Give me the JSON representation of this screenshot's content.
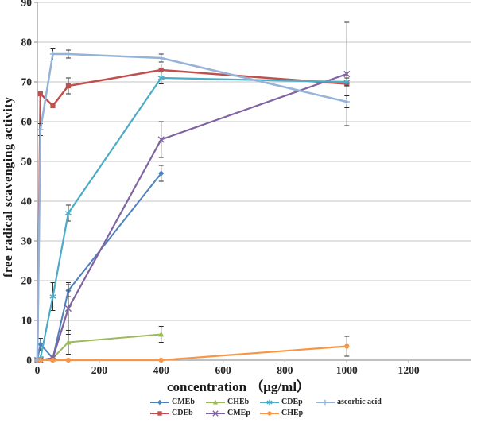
{
  "figure": {
    "background": "#ffffff"
  },
  "chart_data": {
    "type": "line",
    "title": "",
    "xlabel": "concentration （μg/ml）",
    "ylabel": "free radical scavenging activity",
    "xlim": [
      0,
      1400
    ],
    "ylim": [
      0,
      90
    ],
    "x_ticks": [
      0,
      200,
      400,
      600,
      800,
      1000,
      1200
    ],
    "y_ticks": [
      0,
      10,
      20,
      30,
      40,
      50,
      60,
      70,
      80,
      90
    ],
    "grid": "horizontal",
    "gridline_color": "#c6c6c6",
    "axis_color": "#9b9b9b",
    "error_bar_color": "#2b2b2b",
    "legend_position": "bottom",
    "series": [
      {
        "name": "CMEb",
        "color": "#4F81BD",
        "marker": "diamond",
        "width": 2,
        "points": [
          [
            0,
            0,
            0
          ],
          [
            10,
            4,
            1.5
          ],
          [
            50,
            0.5,
            0
          ],
          [
            100,
            17.5,
            1.5
          ],
          [
            400,
            47,
            2
          ]
        ]
      },
      {
        "name": "CDEb",
        "color": "#C0504D",
        "marker": "square",
        "width": 2.5,
        "points": [
          [
            0,
            0,
            0
          ],
          [
            10,
            67,
            0
          ],
          [
            50,
            64,
            0
          ],
          [
            100,
            69,
            2
          ],
          [
            400,
            73,
            1.5
          ],
          [
            1000,
            69.5,
            0
          ]
        ]
      },
      {
        "name": "CHEb",
        "color": "#9BBB59",
        "marker": "triangle",
        "width": 2,
        "points": [
          [
            0,
            0,
            0
          ],
          [
            10,
            0,
            0
          ],
          [
            50,
            0.5,
            0
          ],
          [
            100,
            4.5,
            3
          ],
          [
            400,
            6.5,
            2
          ]
        ]
      },
      {
        "name": "CMEp",
        "color": "#8064A2",
        "marker": "x",
        "width": 2.2,
        "points": [
          [
            0,
            0,
            0
          ],
          [
            10,
            0,
            0
          ],
          [
            50,
            0.5,
            0
          ],
          [
            100,
            13,
            6.5
          ],
          [
            400,
            55.5,
            4.5
          ],
          [
            1000,
            72,
            13
          ]
        ]
      },
      {
        "name": "CDEp",
        "color": "#4BACC6",
        "marker": "asterisk",
        "width": 2.2,
        "points": [
          [
            0,
            0,
            0
          ],
          [
            10,
            0.5,
            0
          ],
          [
            50,
            16,
            3.5
          ],
          [
            100,
            37,
            2
          ],
          [
            400,
            71,
            1.5
          ],
          [
            1000,
            70,
            1
          ]
        ]
      },
      {
        "name": "CHEp",
        "color": "#F79646",
        "marker": "circle",
        "width": 2.2,
        "points": [
          [
            0,
            0,
            0
          ],
          [
            10,
            0,
            0
          ],
          [
            50,
            0,
            0
          ],
          [
            100,
            0,
            0
          ],
          [
            400,
            0,
            0
          ],
          [
            1000,
            3.5,
            2.5
          ]
        ]
      },
      {
        "name": "ascorbic acid",
        "color": "#95B3D7",
        "marker": "plus",
        "width": 2.5,
        "points": [
          [
            0,
            0,
            0
          ],
          [
            10,
            58,
            1.5
          ],
          [
            50,
            77,
            1.5
          ],
          [
            100,
            77,
            1
          ],
          [
            400,
            76,
            1
          ],
          [
            1000,
            65,
            1.5
          ]
        ]
      }
    ],
    "legend_order": [
      "CMEb",
      "CHEb",
      "CDEp",
      "ascorbic acid",
      "CDEb",
      "CMEp",
      "CHEp"
    ]
  }
}
